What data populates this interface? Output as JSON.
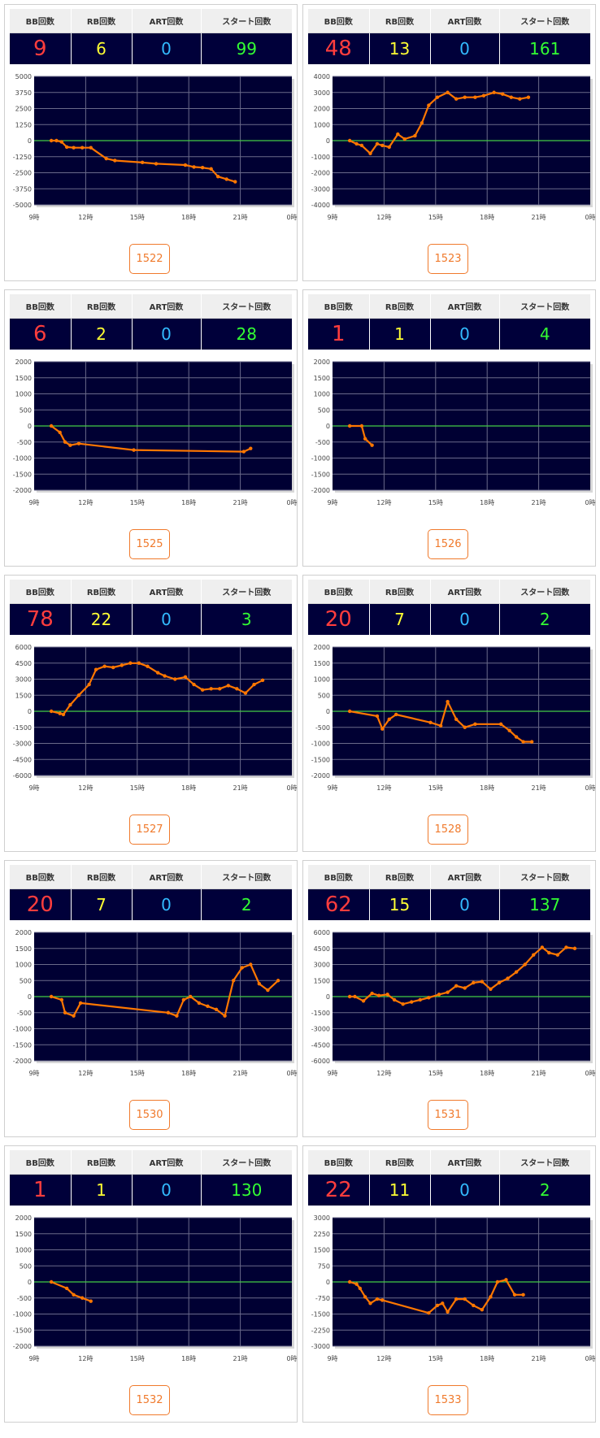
{
  "headers": {
    "bb": "BB回数",
    "rb": "RB回数",
    "art": "ART回数",
    "start": "スタート回数"
  },
  "colors": {
    "bb": "#ff3d3d",
    "rb": "#ffff33",
    "art": "#33bbff",
    "start": "#33ff33",
    "plot_bg": "#000033",
    "grid": "#6a6a8a",
    "zero_line": "#44cc44",
    "series": "#ff7700",
    "button": "#f07a2c"
  },
  "x_ticks": [
    "9時",
    "12時",
    "15時",
    "18時",
    "21時",
    "0時"
  ],
  "units": [
    "1522",
    "1523",
    "1525",
    "1526",
    "1527",
    "1528",
    "1530",
    "1531",
    "1532",
    "1533"
  ],
  "machines": [
    {
      "number": "1522",
      "bb": "9",
      "rb": "6",
      "art": "0",
      "start": "99"
    },
    {
      "number": "1523",
      "bb": "48",
      "rb": "13",
      "art": "0",
      "start": "161"
    },
    {
      "number": "1525",
      "bb": "6",
      "rb": "2",
      "art": "0",
      "start": "28"
    },
    {
      "number": "1526",
      "bb": "1",
      "rb": "1",
      "art": "0",
      "start": "4"
    },
    {
      "number": "1527",
      "bb": "78",
      "rb": "22",
      "art": "0",
      "start": "3"
    },
    {
      "number": "1528",
      "bb": "20",
      "rb": "7",
      "art": "0",
      "start": "2"
    },
    {
      "number": "1530",
      "bb": "20",
      "rb": "7",
      "art": "0",
      "start": "2"
    },
    {
      "number": "1531",
      "bb": "62",
      "rb": "15",
      "art": "0",
      "start": "137"
    },
    {
      "number": "1532",
      "bb": "1",
      "rb": "1",
      "art": "0",
      "start": "130"
    },
    {
      "number": "1533",
      "bb": "22",
      "rb": "11",
      "art": "0",
      "start": "2"
    }
  ],
  "chart_data": [
    {
      "type": "line",
      "unit": "1522",
      "x_unit": "hour",
      "xlim": [
        9,
        24
      ],
      "ylim": [
        -5000,
        5000
      ],
      "y_ticks": [
        "5000",
        "3750",
        "2500",
        "1250",
        "0",
        "-1250",
        "-2500",
        "-3750",
        "-5000"
      ],
      "x_ticks": [
        "9時",
        "12時",
        "15時",
        "18時",
        "21時",
        "0時"
      ],
      "grid": true,
      "points": [
        [
          10,
          0
        ],
        [
          10.3,
          0
        ],
        [
          10.6,
          -100
        ],
        [
          10.9,
          -500
        ],
        [
          11.3,
          -550
        ],
        [
          11.8,
          -550
        ],
        [
          12.3,
          -550
        ],
        [
          13.2,
          -1400
        ],
        [
          13.7,
          -1550
        ],
        [
          15.3,
          -1700
        ],
        [
          16.1,
          -1800
        ],
        [
          17.8,
          -1900
        ],
        [
          18.3,
          -2050
        ],
        [
          18.8,
          -2100
        ],
        [
          19.3,
          -2200
        ],
        [
          19.7,
          -2800
        ],
        [
          20.2,
          -3000
        ],
        [
          20.7,
          -3200
        ]
      ]
    },
    {
      "type": "line",
      "unit": "1523",
      "x_unit": "hour",
      "xlim": [
        9,
        24
      ],
      "ylim": [
        -4000,
        4000
      ],
      "y_ticks": [
        "4000",
        "3000",
        "2000",
        "1000",
        "0",
        "-1000",
        "-2000",
        "-3000",
        "-4000"
      ],
      "x_ticks": [
        "9時",
        "12時",
        "15時",
        "18時",
        "21時",
        "0時"
      ],
      "grid": true,
      "points": [
        [
          10,
          0
        ],
        [
          10.4,
          -200
        ],
        [
          10.7,
          -300
        ],
        [
          11.2,
          -800
        ],
        [
          11.6,
          -200
        ],
        [
          11.9,
          -300
        ],
        [
          12.3,
          -400
        ],
        [
          12.8,
          400
        ],
        [
          13.2,
          100
        ],
        [
          13.8,
          300
        ],
        [
          14.2,
          1100
        ],
        [
          14.6,
          2200
        ],
        [
          15.1,
          2700
        ],
        [
          15.7,
          3000
        ],
        [
          16.2,
          2600
        ],
        [
          16.7,
          2700
        ],
        [
          17.3,
          2700
        ],
        [
          17.8,
          2800
        ],
        [
          18.4,
          3000
        ],
        [
          18.9,
          2900
        ],
        [
          19.4,
          2700
        ],
        [
          19.9,
          2600
        ],
        [
          20.4,
          2700
        ]
      ]
    },
    {
      "type": "line",
      "unit": "1525",
      "x_unit": "hour",
      "xlim": [
        9,
        24
      ],
      "ylim": [
        -2000,
        2000
      ],
      "y_ticks": [
        "2000",
        "1500",
        "1000",
        "500",
        "0",
        "-500",
        "-1000",
        "-1500",
        "-2000"
      ],
      "x_ticks": [
        "9時",
        "12時",
        "15時",
        "18時",
        "21時",
        "0時"
      ],
      "grid": true,
      "points": [
        [
          10,
          0
        ],
        [
          10.5,
          -200
        ],
        [
          10.8,
          -500
        ],
        [
          11.1,
          -600
        ],
        [
          11.6,
          -550
        ],
        [
          14.8,
          -750
        ],
        [
          21.2,
          -800
        ],
        [
          21.6,
          -700
        ]
      ]
    },
    {
      "type": "line",
      "unit": "1526",
      "x_unit": "hour",
      "xlim": [
        9,
        24
      ],
      "ylim": [
        -2000,
        2000
      ],
      "y_ticks": [
        "2000",
        "1500",
        "1000",
        "500",
        "0",
        "-500",
        "-1000",
        "-1500",
        "-2000"
      ],
      "x_ticks": [
        "9時",
        "12時",
        "15時",
        "18時",
        "21時",
        "0時"
      ],
      "grid": true,
      "points": [
        [
          10,
          0
        ],
        [
          10.7,
          0
        ],
        [
          10.9,
          -400
        ],
        [
          11.3,
          -600
        ]
      ]
    },
    {
      "type": "line",
      "unit": "1527",
      "x_unit": "hour",
      "xlim": [
        9,
        24
      ],
      "ylim": [
        -6000,
        6000
      ],
      "y_ticks": [
        "6000",
        "4500",
        "3000",
        "1500",
        "0",
        "-1500",
        "-3000",
        "-4500",
        "-6000"
      ],
      "x_ticks": [
        "9時",
        "12時",
        "15時",
        "18時",
        "21時",
        "0時"
      ],
      "grid": true,
      "points": [
        [
          10,
          0
        ],
        [
          10.5,
          -200
        ],
        [
          10.7,
          -300
        ],
        [
          11.1,
          600
        ],
        [
          11.6,
          1500
        ],
        [
          12.2,
          2500
        ],
        [
          12.6,
          3900
        ],
        [
          13.1,
          4200
        ],
        [
          13.6,
          4100
        ],
        [
          14.1,
          4300
        ],
        [
          14.6,
          4500
        ],
        [
          15.1,
          4500
        ],
        [
          15.6,
          4200
        ],
        [
          16.2,
          3600
        ],
        [
          16.6,
          3300
        ],
        [
          17.2,
          3000
        ],
        [
          17.8,
          3200
        ],
        [
          18.3,
          2500
        ],
        [
          18.8,
          2000
        ],
        [
          19.3,
          2100
        ],
        [
          19.8,
          2100
        ],
        [
          20.3,
          2400
        ],
        [
          20.8,
          2100
        ],
        [
          21.3,
          1700
        ],
        [
          21.8,
          2500
        ],
        [
          22.3,
          2900
        ]
      ]
    },
    {
      "type": "line",
      "unit": "1528",
      "x_unit": "hour",
      "xlim": [
        9,
        24
      ],
      "ylim": [
        -2000,
        2000
      ],
      "y_ticks": [
        "2000",
        "1500",
        "1000",
        "500",
        "0",
        "-500",
        "-1000",
        "-1500",
        "-2000"
      ],
      "x_ticks": [
        "9時",
        "12時",
        "15時",
        "18時",
        "21時",
        "0時"
      ],
      "grid": true,
      "points": [
        [
          10,
          0
        ],
        [
          11.6,
          -150
        ],
        [
          11.9,
          -550
        ],
        [
          12.3,
          -250
        ],
        [
          12.7,
          -100
        ],
        [
          14.7,
          -350
        ],
        [
          15.3,
          -450
        ],
        [
          15.7,
          300
        ],
        [
          16.2,
          -250
        ],
        [
          16.7,
          -500
        ],
        [
          17.3,
          -400
        ],
        [
          18.8,
          -400
        ],
        [
          19.3,
          -600
        ],
        [
          19.7,
          -800
        ],
        [
          20.1,
          -950
        ],
        [
          20.6,
          -950
        ]
      ]
    },
    {
      "type": "line",
      "unit": "1530",
      "x_unit": "hour",
      "xlim": [
        9,
        24
      ],
      "ylim": [
        -2000,
        2000
      ],
      "y_ticks": [
        "2000",
        "1500",
        "1000",
        "500",
        "0",
        "-500",
        "-1000",
        "-1500",
        "-2000"
      ],
      "x_ticks": [
        "9時",
        "12時",
        "15時",
        "18時",
        "21時",
        "0時"
      ],
      "grid": true,
      "points": [
        [
          10,
          0
        ],
        [
          10.6,
          -100
        ],
        [
          10.8,
          -500
        ],
        [
          11.3,
          -600
        ],
        [
          11.7,
          -200
        ],
        [
          16.8,
          -500
        ],
        [
          17.3,
          -600
        ],
        [
          17.7,
          -100
        ],
        [
          18.1,
          0
        ],
        [
          18.6,
          -200
        ],
        [
          19.1,
          -300
        ],
        [
          19.6,
          -400
        ],
        [
          20.1,
          -600
        ],
        [
          20.6,
          500
        ],
        [
          21.1,
          900
        ],
        [
          21.6,
          1000
        ],
        [
          22.1,
          400
        ],
        [
          22.6,
          200
        ],
        [
          23.2,
          500
        ]
      ]
    },
    {
      "type": "line",
      "unit": "1531",
      "x_unit": "hour",
      "xlim": [
        9,
        24
      ],
      "ylim": [
        -6000,
        6000
      ],
      "y_ticks": [
        "6000",
        "4500",
        "3000",
        "1500",
        "0",
        "-1500",
        "-3000",
        "-4500",
        "-6000"
      ],
      "x_ticks": [
        "9時",
        "12時",
        "15時",
        "18時",
        "21時",
        "0時"
      ],
      "grid": true,
      "points": [
        [
          10,
          0
        ],
        [
          10.3,
          0
        ],
        [
          10.8,
          -400
        ],
        [
          11.3,
          300
        ],
        [
          11.7,
          100
        ],
        [
          12.2,
          200
        ],
        [
          12.6,
          -300
        ],
        [
          13.1,
          -700
        ],
        [
          13.6,
          -500
        ],
        [
          14.1,
          -300
        ],
        [
          14.6,
          -100
        ],
        [
          15.2,
          200
        ],
        [
          15.7,
          400
        ],
        [
          16.2,
          1000
        ],
        [
          16.7,
          800
        ],
        [
          17.2,
          1300
        ],
        [
          17.7,
          1400
        ],
        [
          18.2,
          700
        ],
        [
          18.7,
          1300
        ],
        [
          19.2,
          1700
        ],
        [
          19.7,
          2300
        ],
        [
          20.2,
          3000
        ],
        [
          20.7,
          3900
        ],
        [
          21.2,
          4600
        ],
        [
          21.6,
          4100
        ],
        [
          22.1,
          3900
        ],
        [
          22.6,
          4600
        ],
        [
          23.1,
          4500
        ]
      ]
    },
    {
      "type": "line",
      "unit": "1532",
      "x_unit": "hour",
      "xlim": [
        9,
        24
      ],
      "ylim": [
        -2000,
        2000
      ],
      "y_ticks": [
        "2000",
        "1500",
        "1000",
        "500",
        "0",
        "-500",
        "-1000",
        "-1500",
        "-2000"
      ],
      "x_ticks": [
        "9時",
        "12時",
        "15時",
        "18時",
        "21時",
        "0時"
      ],
      "grid": true,
      "points": [
        [
          10,
          0
        ],
        [
          10.9,
          -200
        ],
        [
          11.3,
          -400
        ],
        [
          11.8,
          -500
        ],
        [
          12.3,
          -600
        ]
      ]
    },
    {
      "type": "line",
      "unit": "1533",
      "x_unit": "hour",
      "xlim": [
        9,
        24
      ],
      "ylim": [
        -3000,
        3000
      ],
      "y_ticks": [
        "3000",
        "2250",
        "1500",
        "750",
        "0",
        "-750",
        "-1500",
        "-2250",
        "-3000"
      ],
      "x_ticks": [
        "9時",
        "12時",
        "15時",
        "18時",
        "21時",
        "0時"
      ],
      "grid": true,
      "points": [
        [
          10,
          0
        ],
        [
          10.4,
          -100
        ],
        [
          10.6,
          -300
        ],
        [
          10.9,
          -700
        ],
        [
          11.2,
          -1000
        ],
        [
          11.6,
          -800
        ],
        [
          11.9,
          -850
        ],
        [
          14.6,
          -1450
        ],
        [
          15.1,
          -1100
        ],
        [
          15.4,
          -1000
        ],
        [
          15.7,
          -1400
        ],
        [
          16.2,
          -800
        ],
        [
          16.7,
          -800
        ],
        [
          17.2,
          -1100
        ],
        [
          17.7,
          -1300
        ],
        [
          18.2,
          -700
        ],
        [
          18.6,
          0
        ],
        [
          19.1,
          100
        ],
        [
          19.6,
          -600
        ],
        [
          20.1,
          -600
        ]
      ]
    }
  ]
}
